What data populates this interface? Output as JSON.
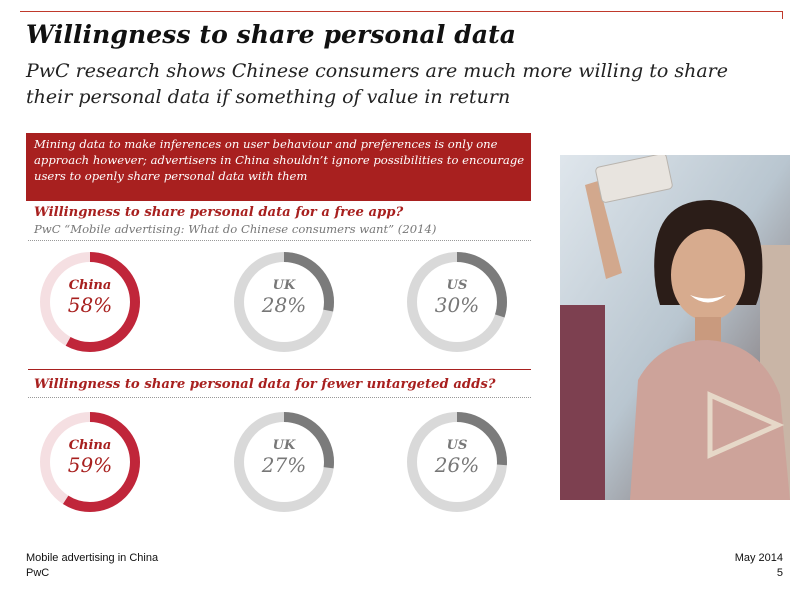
{
  "header": {
    "title": "Willingness to share personal data",
    "subtitle": "PwC research shows Chinese consumers are much more willing to share their personal data if something of value in return"
  },
  "callout": {
    "text": "Mining data to make inferences on user behaviour and preferences is only one approach however; advertisers in China shouldn’t ignore possibilities to encourage users to openly share personal data with them"
  },
  "colors": {
    "accent": "#a8201f",
    "china_fill": "#c0263a",
    "china_track": "#f5dfe2",
    "other_fill": "#7b7b7b",
    "other_track": "#d9d9d9"
  },
  "chart_data": [
    {
      "type": "pie",
      "title": "Willingness to share personal data for a free app?",
      "subtitle": "PwC “Mobile advertising: What do Chinese consumers want” (2014)",
      "categories": [
        "China",
        "UK",
        "US"
      ],
      "values": [
        58,
        28,
        30
      ],
      "value_labels": [
        "58%",
        "28%",
        "30%"
      ]
    },
    {
      "type": "pie",
      "title": "Willingness to share personal data for fewer untargeted adds?",
      "subtitle": "",
      "categories": [
        "China",
        "UK",
        "US"
      ],
      "values": [
        59,
        27,
        26
      ],
      "value_labels": [
        "59%",
        "27%",
        "26%"
      ]
    }
  ],
  "footer": {
    "left_line1": "Mobile advertising in China",
    "left_line2": "PwC",
    "right_line1": "May 2014",
    "right_line2": "5"
  }
}
